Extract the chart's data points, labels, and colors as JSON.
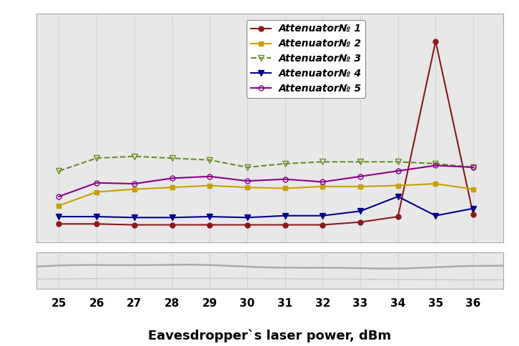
{
  "x": [
    25,
    26,
    27,
    28,
    29,
    30,
    31,
    32,
    33,
    34,
    35,
    36
  ],
  "series": {
    "Attenuator№ 1": {
      "y": [
        1.8,
        1.8,
        1.79,
        1.79,
        1.79,
        1.79,
        1.79,
        1.79,
        1.82,
        1.88,
        3.8,
        1.9
      ],
      "color": "#8B1A1A",
      "marker": "o",
      "linestyle": "-",
      "markersize": 5,
      "markerfacecolor": "#8B1A1A"
    },
    "Attenuator№ 2": {
      "y": [
        2.0,
        2.15,
        2.18,
        2.2,
        2.22,
        2.2,
        2.19,
        2.21,
        2.21,
        2.22,
        2.24,
        2.18
      ],
      "color": "#C8A000",
      "marker": "s",
      "linestyle": "-",
      "markersize": 5,
      "markerfacecolor": "#C8A000"
    },
    "Attenuator№ 3": {
      "y": [
        2.38,
        2.52,
        2.54,
        2.52,
        2.5,
        2.42,
        2.46,
        2.48,
        2.48,
        2.48,
        2.46,
        2.42
      ],
      "color": "#6B8E23",
      "marker": "v",
      "linestyle": "--",
      "markersize": 6,
      "markerfacecolor": "none"
    },
    "Attenuator№ 4": {
      "y": [
        1.88,
        1.88,
        1.87,
        1.87,
        1.88,
        1.87,
        1.89,
        1.89,
        1.94,
        2.1,
        1.89,
        1.97
      ],
      "color": "#00008B",
      "marker": "v",
      "linestyle": "-",
      "markersize": 6,
      "markerfacecolor": "#00008B"
    },
    "Attenuator№ 5": {
      "y": [
        2.1,
        2.25,
        2.24,
        2.3,
        2.32,
        2.27,
        2.29,
        2.26,
        2.32,
        2.38,
        2.44,
        2.42
      ],
      "color": "#8B008B",
      "marker": "o",
      "linestyle": "-",
      "markersize": 5,
      "markerfacecolor": "none"
    }
  },
  "xlabel": "Eavesdropper`s laser power, dBm",
  "xlim": [
    24.4,
    36.8
  ],
  "ylim_main": [
    1.6,
    4.1
  ],
  "ylim_small": [
    -0.12,
    0.12
  ],
  "xticks": [
    25,
    26,
    27,
    28,
    29,
    30,
    31,
    32,
    33,
    34,
    35,
    36
  ],
  "grid_color": "#d0d0d0",
  "background_color": "#ffffff",
  "plot_bg_color": "#e8e8e8",
  "legend_fontsize": 10,
  "xlabel_fontsize": 13
}
